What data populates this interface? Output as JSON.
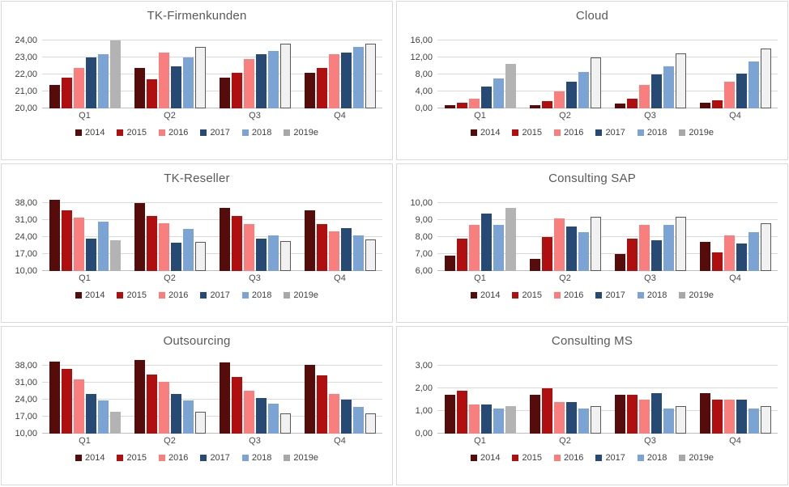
{
  "series_meta": {
    "names": [
      "2014",
      "2015",
      "2016",
      "2017",
      "2018",
      "2019e"
    ],
    "colors": {
      "2014": "#570c0c",
      "2015": "#b00f0f",
      "2016": "#f97e7e",
      "2017": "#264a73",
      "2018": "#7ba4d4",
      "2019e": "#b3b3b3"
    },
    "legend_swatch_2019e": "#a8a8a8",
    "forecast_series": "2019e",
    "forecast_solid_quarters": [
      "Q1"
    ],
    "forecast_outline_fill": "#f1f1f1",
    "forecast_outline_border": "#595959"
  },
  "ui_colors": {
    "gridline": "#d9d9d9",
    "axis_line": "#bfbfbf",
    "panel_border": "#d9d9d9",
    "title_text": "#595959",
    "tick_text": "#404040"
  },
  "chart_data": [
    {
      "type": "bar",
      "title": "TK-Firmenkunden",
      "categories": [
        "Q1",
        "Q2",
        "Q3",
        "Q4"
      ],
      "ylim": [
        20,
        24
      ],
      "yticks": {
        "values": [
          20,
          21,
          22,
          23,
          24
        ],
        "labels": [
          "20,00",
          "21,00",
          "22,00",
          "23,00",
          "24,00"
        ]
      },
      "grid": true,
      "legend_position": "bottom",
      "series": [
        {
          "name": "2014",
          "values": [
            21.4,
            22.4,
            21.8,
            22.1
          ]
        },
        {
          "name": "2015",
          "values": [
            21.8,
            21.7,
            22.1,
            22.4
          ]
        },
        {
          "name": "2016",
          "values": [
            22.4,
            23.3,
            22.9,
            23.2
          ]
        },
        {
          "name": "2017",
          "values": [
            23.0,
            22.5,
            23.2,
            23.3
          ]
        },
        {
          "name": "2018",
          "values": [
            23.2,
            23.0,
            23.4,
            23.6
          ]
        },
        {
          "name": "2019e",
          "values": [
            24.0,
            23.6,
            23.8,
            23.8
          ]
        }
      ]
    },
    {
      "type": "bar",
      "title": "Cloud",
      "categories": [
        "Q1",
        "Q2",
        "Q3",
        "Q4"
      ],
      "ylim": [
        0,
        16
      ],
      "yticks": {
        "values": [
          0,
          4,
          8,
          12,
          16
        ],
        "labels": [
          "0,00",
          "4,00",
          "8,00",
          "12,00",
          "16,00"
        ]
      },
      "grid": true,
      "legend_position": "bottom",
      "series": [
        {
          "name": "2014",
          "values": [
            0.8,
            0.8,
            1.2,
            1.4
          ]
        },
        {
          "name": "2015",
          "values": [
            1.4,
            1.8,
            2.3,
            1.9
          ]
        },
        {
          "name": "2016",
          "values": [
            2.3,
            4.0,
            5.5,
            6.2
          ]
        },
        {
          "name": "2017",
          "values": [
            5.2,
            6.3,
            8.0,
            8.2
          ]
        },
        {
          "name": "2018",
          "values": [
            7.1,
            8.5,
            10.0,
            11.0
          ]
        },
        {
          "name": "2019e",
          "values": [
            10.5,
            12.0,
            13.0,
            14.2
          ]
        }
      ]
    },
    {
      "type": "bar",
      "title": "TK-Reseller",
      "categories": [
        "Q1",
        "Q2",
        "Q3",
        "Q4"
      ],
      "ylim": [
        10,
        41
      ],
      "yticks": {
        "values": [
          10,
          17,
          24,
          31,
          38
        ],
        "labels": [
          "10,00",
          "17,00",
          "24,00",
          "31,00",
          "38,00"
        ]
      },
      "grid": true,
      "legend_position": "bottom",
      "series": [
        {
          "name": "2014",
          "values": [
            39.2,
            37.9,
            36.0,
            35.0
          ]
        },
        {
          "name": "2015",
          "values": [
            35.0,
            32.7,
            32.7,
            29.3
          ]
        },
        {
          "name": "2016",
          "values": [
            32.0,
            29.8,
            29.4,
            26.5
          ]
        },
        {
          "name": "2017",
          "values": [
            23.2,
            21.8,
            23.2,
            27.7
          ]
        },
        {
          "name": "2018",
          "values": [
            30.2,
            27.4,
            24.6,
            24.8
          ]
        },
        {
          "name": "2019e",
          "values": [
            22.8,
            22.0,
            22.3,
            23.0
          ]
        }
      ]
    },
    {
      "type": "bar",
      "title": "Consulting SAP",
      "categories": [
        "Q1",
        "Q2",
        "Q3",
        "Q4"
      ],
      "ylim": [
        6,
        10
      ],
      "yticks": {
        "values": [
          6,
          7,
          8,
          9,
          10
        ],
        "labels": [
          "6,00",
          "7,00",
          "8,00",
          "9,00",
          "10,00"
        ]
      },
      "grid": true,
      "legend_position": "bottom",
      "series": [
        {
          "name": "2014",
          "values": [
            6.9,
            6.7,
            7.0,
            7.7
          ]
        },
        {
          "name": "2015",
          "values": [
            7.9,
            8.0,
            7.9,
            7.1
          ]
        },
        {
          "name": "2016",
          "values": [
            8.7,
            9.1,
            8.7,
            8.1
          ]
        },
        {
          "name": "2017",
          "values": [
            9.4,
            8.6,
            7.8,
            7.6
          ]
        },
        {
          "name": "2018",
          "values": [
            8.7,
            8.3,
            8.7,
            8.3
          ]
        },
        {
          "name": "2019e",
          "values": [
            9.7,
            9.2,
            9.2,
            8.8
          ]
        }
      ]
    },
    {
      "type": "bar",
      "title": "Outsourcing",
      "categories": [
        "Q1",
        "Q2",
        "Q3",
        "Q4"
      ],
      "ylim": [
        10,
        41
      ],
      "yticks": {
        "values": [
          10,
          17,
          24,
          31,
          38
        ],
        "labels": [
          "10,00",
          "17,00",
          "24,00",
          "31,00",
          "38,00"
        ]
      },
      "grid": true,
      "legend_position": "bottom",
      "series": [
        {
          "name": "2014",
          "values": [
            39.6,
            40.3,
            39.3,
            38.2
          ]
        },
        {
          "name": "2015",
          "values": [
            36.8,
            34.5,
            33.3,
            33.9
          ]
        },
        {
          "name": "2016",
          "values": [
            32.2,
            31.5,
            27.6,
            26.2
          ]
        },
        {
          "name": "2017",
          "values": [
            26.5,
            26.2,
            24.8,
            24.1
          ]
        },
        {
          "name": "2018",
          "values": [
            23.8,
            23.8,
            22.3,
            21.0
          ]
        },
        {
          "name": "2019e",
          "values": [
            19.0,
            18.9,
            18.4,
            18.2
          ]
        }
      ]
    },
    {
      "type": "bar",
      "title": "Consulting MS",
      "categories": [
        "Q1",
        "Q2",
        "Q3",
        "Q4"
      ],
      "ylim": [
        0,
        3
      ],
      "yticks": {
        "values": [
          0,
          1,
          2,
          3
        ],
        "labels": [
          "0,00",
          "1,00",
          "2,00",
          "3,00"
        ]
      },
      "grid": true,
      "legend_position": "bottom",
      "series": [
        {
          "name": "2014",
          "values": [
            1.7,
            1.7,
            1.7,
            1.8
          ]
        },
        {
          "name": "2015",
          "values": [
            1.9,
            2.0,
            1.7,
            1.5
          ]
        },
        {
          "name": "2016",
          "values": [
            1.3,
            1.4,
            1.5,
            1.5
          ]
        },
        {
          "name": "2017",
          "values": [
            1.3,
            1.4,
            1.8,
            1.5
          ]
        },
        {
          "name": "2018",
          "values": [
            1.1,
            1.1,
            1.1,
            1.1
          ]
        },
        {
          "name": "2019e",
          "values": [
            1.2,
            1.2,
            1.2,
            1.2
          ]
        }
      ]
    }
  ]
}
